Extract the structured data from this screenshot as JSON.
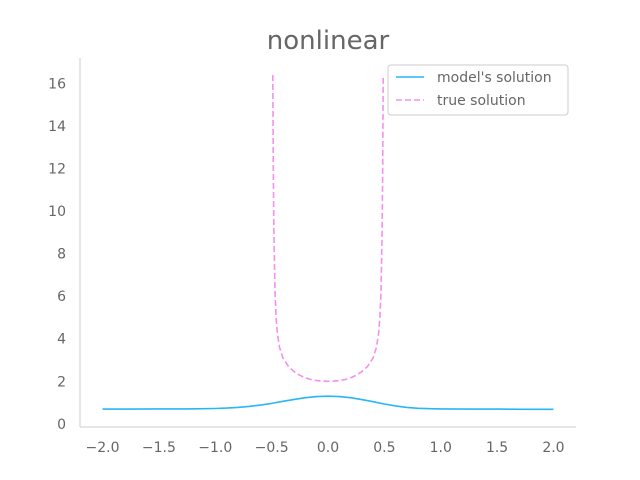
{
  "chart_data": {
    "type": "line",
    "title": "nonlinear",
    "xlabel": "",
    "ylabel": "",
    "xlim": [
      -2.2,
      2.2
    ],
    "ylim": [
      -0.15,
      17.2
    ],
    "xticks": [
      -2.0,
      -1.5,
      -1.0,
      -0.5,
      0.0,
      0.5,
      1.0,
      1.5,
      2.0
    ],
    "xtick_labels": [
      "−2.0",
      "−1.5",
      "−1.0",
      "−0.5",
      "0.0",
      "0.5",
      "1.0",
      "1.5",
      "2.0"
    ],
    "yticks": [
      0,
      2,
      4,
      6,
      8,
      10,
      12,
      14,
      16
    ],
    "ytick_labels": [
      "0",
      "2",
      "4",
      "6",
      "8",
      "10",
      "12",
      "14",
      "16"
    ],
    "grid": false,
    "legend": "top-right",
    "series": [
      {
        "name": "model's solution",
        "color": "#29b6f6",
        "style": "solid",
        "x": [
          -2.0,
          -1.75,
          -1.5,
          -1.25,
          -1.0,
          -0.9,
          -0.8,
          -0.7,
          -0.6,
          -0.5,
          -0.4,
          -0.3,
          -0.2,
          -0.1,
          0.0,
          0.1,
          0.2,
          0.3,
          0.4,
          0.5,
          0.6,
          0.7,
          0.8,
          0.9,
          1.0,
          1.25,
          1.5,
          1.75,
          2.0
        ],
        "y": [
          0.69,
          0.69,
          0.7,
          0.7,
          0.72,
          0.74,
          0.77,
          0.82,
          0.88,
          0.96,
          1.06,
          1.15,
          1.23,
          1.28,
          1.3,
          1.28,
          1.23,
          1.14,
          1.04,
          0.93,
          0.84,
          0.77,
          0.73,
          0.71,
          0.7,
          0.69,
          0.69,
          0.68,
          0.68
        ]
      },
      {
        "name": "true solution",
        "color": "#f48fef",
        "style": "dashed",
        "x": [
          -0.49,
          -0.485,
          -0.48,
          -0.47,
          -0.46,
          -0.45,
          -0.43,
          -0.4,
          -0.35,
          -0.3,
          -0.25,
          -0.2,
          -0.15,
          -0.1,
          -0.05,
          0.0,
          0.05,
          0.1,
          0.15,
          0.2,
          0.25,
          0.3,
          0.35,
          0.4,
          0.43,
          0.45,
          0.46,
          0.47,
          0.48,
          0.485,
          0.49
        ],
        "y": [
          16.4,
          12.0,
          9.0,
          6.2,
          5.0,
          4.3,
          3.6,
          3.1,
          2.7,
          2.45,
          2.28,
          2.16,
          2.08,
          2.03,
          2.01,
          2.0,
          2.01,
          2.03,
          2.08,
          2.16,
          2.28,
          2.45,
          2.7,
          3.1,
          3.6,
          4.3,
          5.0,
          6.2,
          9.0,
          12.0,
          16.4
        ]
      }
    ]
  }
}
